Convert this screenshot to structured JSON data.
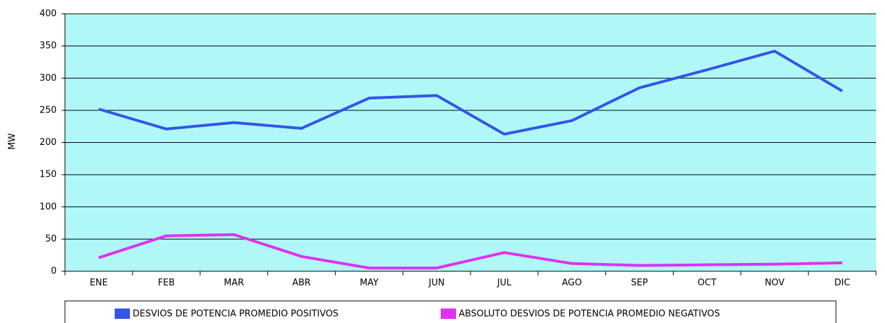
{
  "chart_data": {
    "type": "line",
    "y_label": "MW",
    "categories": [
      "ENE",
      "FEB",
      "MAR",
      "ABR",
      "MAY",
      "JUN",
      "JUL",
      "AGO",
      "SEP",
      "OCT",
      "NOV",
      "DIC"
    ],
    "series": [
      {
        "name": "DESVIOS DE POTENCIA PROMEDIO POSITIVOS",
        "color": "#3355e8",
        "values": [
          252,
          221,
          231,
          222,
          269,
          273,
          213,
          234,
          285,
          313,
          342,
          280
        ]
      },
      {
        "name": "ABSOLUTO DESVIOS DE POTENCIA PROMEDIO NEGATIVOS",
        "color": "#e030f0",
        "values": [
          21,
          55,
          57,
          23,
          5,
          5,
          29,
          12,
          9,
          10,
          11,
          13
        ]
      }
    ],
    "ylim": [
      0,
      400
    ],
    "yticks": [
      0,
      50,
      100,
      150,
      200,
      250,
      300,
      350,
      400
    ],
    "grid": true,
    "plot_background": "#b0f8f8"
  }
}
